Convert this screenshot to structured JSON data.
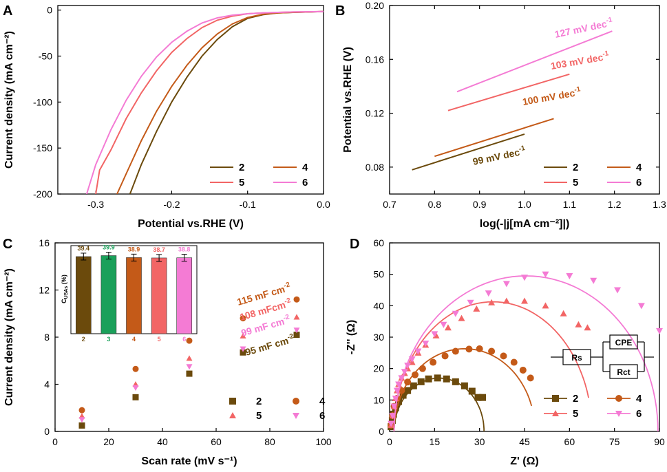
{
  "colors": {
    "s2": "#6b4a0c",
    "s3": "#1aa05a",
    "s4": "#c45a18",
    "s5": "#f26565",
    "s6": "#f47bd4"
  },
  "chart_data": [
    {
      "panel": "A",
      "type": "line",
      "xlabel": "Potential vs.RHE (V)",
      "ylabel": "Current density (mA cm⁻²)",
      "xlim": [
        -0.35,
        0.0
      ],
      "ylim": [
        -200,
        5
      ],
      "xticks": [
        "-0.3",
        "-0.2",
        "-0.1",
        "0.0"
      ],
      "yticks": [
        "0",
        "-50",
        "-100",
        "-150",
        "-200"
      ],
      "xtick_vals": [
        -0.3,
        -0.2,
        -0.1,
        0.0
      ],
      "ytick_vals": [
        0,
        -50,
        -100,
        -150,
        -200
      ],
      "series": [
        {
          "name": "2",
          "color": "#6b4a0c",
          "x": [
            -0.255,
            -0.24,
            -0.22,
            -0.2,
            -0.18,
            -0.16,
            -0.14,
            -0.12,
            -0.1,
            -0.08,
            -0.06,
            -0.04,
            -0.02,
            0.0
          ],
          "y": [
            -200,
            -168,
            -132,
            -100,
            -73,
            -50,
            -32,
            -18,
            -9,
            -5,
            -3,
            -2.5,
            -2,
            -1.5
          ]
        },
        {
          "name": "4",
          "color": "#c45a18",
          "x": [
            -0.272,
            -0.26,
            -0.24,
            -0.22,
            -0.2,
            -0.18,
            -0.16,
            -0.14,
            -0.12,
            -0.1,
            -0.08,
            -0.06,
            -0.04,
            -0.02,
            0.0
          ],
          "y": [
            -200,
            -178,
            -142,
            -110,
            -83,
            -60,
            -41,
            -26,
            -15,
            -8,
            -4.5,
            -3,
            -2.5,
            -2,
            -1.5
          ]
        },
        {
          "name": "5",
          "color": "#f26565",
          "x": [
            -0.3,
            -0.295,
            -0.28,
            -0.26,
            -0.24,
            -0.22,
            -0.2,
            -0.18,
            -0.16,
            -0.14,
            -0.12,
            -0.1,
            -0.08,
            -0.06,
            -0.04,
            -0.02,
            0.0
          ],
          "y": [
            -200,
            -174,
            -152,
            -118,
            -90,
            -66,
            -46,
            -31,
            -19,
            -11,
            -6.5,
            -4,
            -3,
            -2.5,
            -2,
            -1.8,
            -1.5
          ]
        },
        {
          "name": "6",
          "color": "#f47bd4",
          "x": [
            -0.312,
            -0.3,
            -0.28,
            -0.26,
            -0.24,
            -0.22,
            -0.2,
            -0.18,
            -0.16,
            -0.14,
            -0.12,
            -0.1,
            -0.08,
            -0.06,
            -0.04,
            -0.02,
            0.0
          ],
          "y": [
            -200,
            -168,
            -130,
            -98,
            -72,
            -51,
            -35,
            -23,
            -14,
            -8.5,
            -5.5,
            -4,
            -3,
            -2.5,
            -2,
            -1.8,
            -1.5
          ]
        }
      ],
      "legend": [
        "2",
        "4",
        "5",
        "6"
      ]
    },
    {
      "panel": "B",
      "type": "line",
      "xlabel": "log(-|j[mA cm⁻²]|)",
      "ylabel": "Potential vs.RHE (V)",
      "xlim": [
        0.7,
        1.3
      ],
      "ylim": [
        0.06,
        0.2
      ],
      "xticks": [
        "0.7",
        "0.8",
        "0.9",
        "1.0",
        "1.1",
        "1.2",
        "1.3"
      ],
      "yticks": [
        "0.08",
        "0.12",
        "0.16",
        "0.20"
      ],
      "xtick_vals": [
        0.7,
        0.8,
        0.9,
        1.0,
        1.1,
        1.2,
        1.3
      ],
      "ytick_vals": [
        0.08,
        0.12,
        0.16,
        0.2
      ],
      "series": [
        {
          "name": "2",
          "color": "#6b4a0c",
          "x": [
            0.75,
            1.0
          ],
          "y": [
            0.078,
            0.1045
          ]
        },
        {
          "name": "4",
          "color": "#c45a18",
          "x": [
            0.8,
            1.065
          ],
          "y": [
            0.088,
            0.116
          ]
        },
        {
          "name": "5",
          "color": "#f26565",
          "x": [
            0.83,
            1.1
          ],
          "y": [
            0.122,
            0.149
          ]
        },
        {
          "name": "6",
          "color": "#f47bd4",
          "x": [
            0.85,
            1.195
          ],
          "y": [
            0.136,
            0.181
          ]
        }
      ],
      "annotations": [
        {
          "text": "127 mV dec",
          "sup": "-1",
          "color": "#f47bd4"
        },
        {
          "text": "103 mV dec",
          "sup": "-1",
          "color": "#f26565"
        },
        {
          "text": "100 mV dec",
          "sup": "-1",
          "color": "#c45a18"
        },
        {
          "text": "99 mV dec",
          "sup": "-1",
          "color": "#6b4a0c"
        }
      ],
      "legend": [
        "2",
        "4",
        "5",
        "6"
      ]
    },
    {
      "panel": "C",
      "type": "scatter",
      "xlabel": "Scan rate (mV s⁻¹)",
      "ylabel": "Current density (mA cm⁻²)",
      "xlim": [
        0,
        100
      ],
      "ylim": [
        0,
        16
      ],
      "xticks": [
        "0",
        "20",
        "40",
        "60",
        "80",
        "100"
      ],
      "yticks": [
        "0",
        "4",
        "8",
        "12",
        "16"
      ],
      "xtick_vals": [
        0,
        20,
        40,
        60,
        80,
        100
      ],
      "ytick_vals": [
        0,
        4,
        8,
        12,
        16
      ],
      "series": [
        {
          "name": "2",
          "marker": "square",
          "color": "#6b4a0c",
          "x": [
            10,
            30,
            50,
            70,
            90
          ],
          "y": [
            0.5,
            2.9,
            4.9,
            6.7,
            8.2
          ]
        },
        {
          "name": "4",
          "marker": "circle",
          "color": "#c45a18",
          "x": [
            10,
            30,
            50,
            70,
            90
          ],
          "y": [
            1.8,
            5.3,
            7.7,
            9.6,
            11.2
          ]
        },
        {
          "name": "5",
          "marker": "triangle",
          "color": "#f26565",
          "x": [
            10,
            30,
            50,
            70,
            90
          ],
          "y": [
            1.3,
            4.0,
            6.2,
            8.1,
            9.7
          ]
        },
        {
          "name": "6",
          "marker": "triangle-down",
          "color": "#f47bd4",
          "x": [
            10,
            30,
            50,
            70,
            90
          ],
          "y": [
            1.0,
            3.7,
            5.5,
            7.0,
            8.6
          ]
        }
      ],
      "annotations": [
        {
          "text": "115 mF cm",
          "sup": "-2",
          "color": "#c45a18"
        },
        {
          "text": "108 mFcm",
          "sup": "-2",
          "color": "#f26565"
        },
        {
          "text": "99 mF cm",
          "sup": "-2",
          "color": "#f47bd4"
        },
        {
          "text": "95 mF cm",
          "sup": "-2",
          "color": "#6b4a0c"
        }
      ],
      "legend": [
        "2",
        "4",
        "5",
        "6"
      ],
      "inset": {
        "type": "bar",
        "ylabel": "C",
        "ylabel_sub": "USAs",
        "ylabel_unit": " (%)",
        "categories": [
          "2",
          "3",
          "4",
          "5",
          "6"
        ],
        "values": [
          39.4,
          39.9,
          38.9,
          38.7,
          38.8
        ],
        "labels": [
          "39.4",
          "39.9",
          "38.9",
          "38.7",
          "38.8"
        ],
        "colors": [
          "#6b4a0c",
          "#1aa05a",
          "#c45a18",
          "#f26565",
          "#f47bd4"
        ],
        "ylim": [
          0,
          45
        ]
      }
    },
    {
      "panel": "D",
      "type": "line",
      "xlabel": "Z' (Ω)",
      "ylabel": "-Z'' (Ω)",
      "xlim": [
        0,
        90
      ],
      "ylim": [
        0,
        60
      ],
      "xticks": [
        "0",
        "15",
        "30",
        "45",
        "60",
        "75",
        "90"
      ],
      "yticks": [
        "0",
        "10",
        "20",
        "30",
        "40",
        "50",
        "60"
      ],
      "xtick_vals": [
        0,
        15,
        30,
        45,
        60,
        75,
        90
      ],
      "ytick_vals": [
        0,
        10,
        20,
        30,
        40,
        50,
        60
      ],
      "series": [
        {
          "name": "2",
          "marker": "square",
          "color": "#6b4a0c",
          "center": 16.5,
          "radius": 15.0,
          "yscale": 1.13,
          "x": [
            0.5,
            0.9,
            1.3,
            2,
            3,
            4.5,
            6,
            8,
            10.5,
            13,
            16,
            19,
            22,
            25,
            27.5,
            29.5,
            31
          ],
          "y": [
            1.5,
            3.5,
            5.5,
            7.5,
            9.5,
            11.5,
            13.0,
            14.5,
            15.8,
            16.7,
            17.0,
            16.7,
            15.8,
            14.5,
            12.8,
            10.8,
            10.8
          ]
        },
        {
          "name": "4",
          "marker": "circle",
          "color": "#c45a18",
          "center": 25,
          "radius": 23.5,
          "yscale": 1.12,
          "x": [
            0.5,
            1,
            1.5,
            2.5,
            4,
            6,
            8.5,
            11,
            14.5,
            18.5,
            22,
            26.5,
            30,
            34,
            38,
            41.5,
            44.5,
            47
          ],
          "y": [
            2,
            5,
            8,
            10.5,
            13,
            15.7,
            18,
            20,
            22,
            24,
            25.5,
            26.2,
            26.3,
            25.5,
            24,
            22,
            19.5,
            17
          ]
        },
        {
          "name": "5",
          "marker": "triangle",
          "color": "#f26565",
          "center": 34.5,
          "radius": 33,
          "yscale": 1.25,
          "x": [
            0.5,
            1,
            1.5,
            2,
            2.5,
            3,
            4,
            5,
            6,
            7.5,
            9.5,
            12,
            15.5,
            19.5,
            24,
            29,
            34,
            39,
            45,
            52,
            58,
            63,
            66
          ],
          "y": [
            2,
            5,
            8,
            10.5,
            13,
            15,
            17,
            18.5,
            20,
            22,
            25,
            27.5,
            30.5,
            33,
            36,
            39,
            41,
            41.5,
            41.5,
            40,
            37.5,
            34,
            33
          ]
        },
        {
          "name": "6",
          "marker": "triangle-down",
          "color": "#f47bd4",
          "center": 45.5,
          "radius": 44,
          "yscale": 1.125,
          "x": [
            0.5,
            1,
            1.5,
            2,
            2.5,
            3,
            4,
            5,
            6,
            7.5,
            9.5,
            12,
            15,
            18,
            22,
            27,
            33,
            39,
            45,
            52,
            60,
            68,
            76,
            84,
            90
          ],
          "y": [
            2.5,
            5,
            8,
            10.5,
            13,
            15,
            17,
            19,
            21,
            23,
            25.5,
            28,
            31,
            34,
            37.5,
            41,
            44,
            47,
            49,
            50,
            49.5,
            48,
            45,
            40,
            32
          ]
        }
      ],
      "circuit": {
        "r1": "Rs",
        "cpe": "CPE",
        "r2": "Rct"
      },
      "legend": [
        "2",
        "4",
        "5",
        "6"
      ]
    }
  ]
}
